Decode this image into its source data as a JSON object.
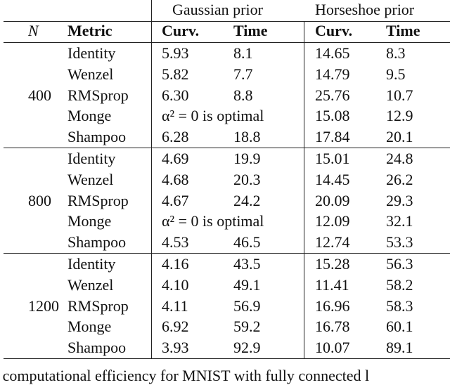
{
  "table": {
    "group_headers": [
      "Gaussian prior",
      "Horseshoe prior"
    ],
    "columns": [
      "N",
      "Metric",
      "Curv.",
      "Time",
      "Curv.",
      "Time"
    ],
    "groups": [
      {
        "N": "400",
        "rows": [
          [
            "Identity",
            "5.93",
            "8.1",
            "14.65",
            "8.3"
          ],
          [
            "Wenzel",
            "5.82",
            "7.7",
            "14.79",
            "9.5"
          ],
          [
            "RMSprop",
            "6.30",
            "8.8",
            "25.76",
            "10.7"
          ],
          [
            "Monge",
            "α² = 0 is optimal",
            "15.08",
            "12.9"
          ],
          [
            "Shampoo",
            "6.28",
            "18.8",
            "17.84",
            "20.1"
          ]
        ]
      },
      {
        "N": "800",
        "rows": [
          [
            "Identity",
            "4.69",
            "19.9",
            "15.01",
            "24.8"
          ],
          [
            "Wenzel",
            "4.68",
            "20.3",
            "14.45",
            "26.2"
          ],
          [
            "RMSprop",
            "4.67",
            "24.2",
            "20.09",
            "29.3"
          ],
          [
            "Monge",
            "α² = 0 is optimal",
            "12.09",
            "32.1"
          ],
          [
            "Shampoo",
            "4.53",
            "46.5",
            "12.74",
            "53.3"
          ]
        ]
      },
      {
        "N": "1200",
        "rows": [
          [
            "Identity",
            "4.16",
            "43.5",
            "15.28",
            "56.3"
          ],
          [
            "Wenzel",
            "4.10",
            "49.1",
            "11.41",
            "58.2"
          ],
          [
            "RMSprop",
            "4.11",
            "56.9",
            "16.96",
            "58.3"
          ],
          [
            "Monge",
            "6.92",
            "59.2",
            "16.78",
            "60.1"
          ],
          [
            "Shampoo",
            "3.93",
            "92.9",
            "10.07",
            "89.1"
          ]
        ]
      }
    ]
  },
  "caption": "l computational efficiency for MNIST with fully connected l"
}
